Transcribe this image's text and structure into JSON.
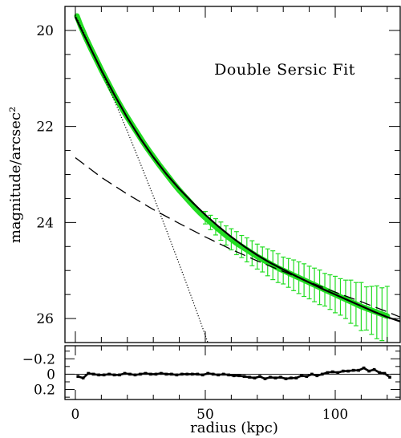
{
  "chart_data": [
    {
      "type": "line",
      "panel": "main",
      "annotation": "Double Sersic Fit",
      "xlabel": "radius (kpc)",
      "ylabel": "magnitude/arcsec²",
      "xlim": [
        -4,
        125
      ],
      "ylim": [
        26.5,
        19.5
      ],
      "y_inverted": true,
      "yticks": [
        20,
        22,
        24,
        26
      ],
      "colors": {
        "data": "#22dd22",
        "errorbar": "#22dd22",
        "model": "#000000"
      },
      "series": [
        {
          "style": "green-points",
          "x": [
            0.6,
            2,
            4,
            6,
            8,
            10,
            12,
            14,
            16,
            18,
            20,
            22,
            24,
            26,
            28,
            30,
            32,
            34,
            36,
            38,
            40,
            42,
            44,
            46,
            48,
            50,
            52,
            54,
            56,
            58,
            60,
            62,
            64,
            66,
            68,
            70,
            72,
            74,
            76,
            78,
            80,
            82,
            84,
            86,
            88,
            90,
            92,
            94,
            96,
            98,
            100,
            102,
            104,
            106,
            108,
            110,
            112,
            114,
            116,
            118,
            120
          ],
          "y": [
            19.7,
            19.9,
            20.15,
            20.38,
            20.6,
            20.82,
            21.03,
            21.24,
            21.44,
            21.63,
            21.81,
            21.98,
            22.15,
            22.32,
            22.48,
            22.63,
            22.78,
            22.92,
            23.06,
            23.2,
            23.33,
            23.45,
            23.57,
            23.69,
            23.8,
            23.9,
            24.0,
            24.09,
            24.18,
            24.27,
            24.35,
            24.43,
            24.5,
            24.57,
            24.64,
            24.71,
            24.77,
            24.83,
            24.89,
            24.95,
            25.0,
            25.05,
            25.1,
            25.15,
            25.2,
            25.25,
            25.3,
            25.35,
            25.4,
            25.45,
            25.5,
            25.55,
            25.6,
            25.65,
            25.7,
            25.75,
            25.79,
            25.83,
            25.87,
            25.91,
            25.95
          ],
          "yerr": [
            0.04,
            0.04,
            0.04,
            0.04,
            0.04,
            0.04,
            0.04,
            0.04,
            0.04,
            0.04,
            0.04,
            0.04,
            0.04,
            0.04,
            0.05,
            0.05,
            0.05,
            0.05,
            0.05,
            0.05,
            0.06,
            0.06,
            0.06,
            0.07,
            0.08,
            0.13,
            0.15,
            0.17,
            0.19,
            0.2,
            0.22,
            0.24,
            0.23,
            0.25,
            0.26,
            0.26,
            0.26,
            0.28,
            0.3,
            0.3,
            0.28,
            0.3,
            0.32,
            0.33,
            0.34,
            0.34,
            0.35,
            0.36,
            0.34,
            0.36,
            0.38,
            0.38,
            0.4,
            0.45,
            0.45,
            0.5,
            0.45,
            0.5,
            0.55,
            0.55,
            0.62
          ]
        },
        {
          "style": "solid",
          "x": [
            0,
            5,
            10,
            15,
            20,
            25,
            30,
            35,
            40,
            45,
            50,
            55,
            60,
            65,
            70,
            75,
            80,
            85,
            90,
            95,
            100,
            105,
            110,
            115,
            120,
            125
          ],
          "y": [
            19.72,
            20.28,
            20.83,
            21.34,
            21.82,
            22.25,
            22.64,
            22.99,
            23.3,
            23.58,
            23.84,
            24.08,
            24.3,
            24.5,
            24.68,
            24.84,
            24.98,
            25.12,
            25.25,
            25.38,
            25.5,
            25.62,
            25.74,
            25.86,
            25.97,
            26.06
          ]
        },
        {
          "style": "dotted",
          "x": [
            0,
            5,
            10,
            15,
            20,
            25,
            30,
            35,
            40,
            45,
            50,
            55,
            58
          ],
          "y": [
            19.68,
            20.25,
            20.85,
            21.46,
            22.1,
            22.77,
            23.45,
            24.15,
            24.87,
            25.6,
            26.35,
            27.12,
            27.6
          ]
        },
        {
          "style": "dashed",
          "x": [
            0,
            10,
            20,
            30,
            40,
            50,
            60,
            70,
            80,
            90,
            100,
            110,
            120,
            125
          ],
          "y": [
            22.65,
            23.06,
            23.41,
            23.73,
            24.02,
            24.3,
            24.56,
            24.8,
            25.02,
            25.24,
            25.45,
            25.65,
            25.86,
            25.97
          ]
        }
      ]
    },
    {
      "type": "scatter",
      "panel": "residual",
      "xlabel": "radius (kpc)",
      "xlim": [
        -4,
        125
      ],
      "ylim": [
        0.33,
        -0.37
      ],
      "y_inverted": true,
      "yticks": [
        0.2,
        0,
        -0.2
      ],
      "ytick_labels": [
        "0.2",
        "0",
        "−0.2"
      ],
      "xticks": [
        0,
        50,
        100
      ],
      "xtick_labels": [
        "0",
        "50",
        "100"
      ],
      "x": [
        1,
        3,
        5,
        7,
        9,
        11,
        13,
        15,
        17,
        19,
        21,
        23,
        25,
        27,
        29,
        31,
        33,
        35,
        37,
        39,
        41,
        43,
        45,
        47,
        49,
        51,
        53,
        55,
        57,
        59,
        61,
        63,
        65,
        67,
        69,
        71,
        73,
        75,
        77,
        79,
        81,
        83,
        85,
        87,
        89,
        91,
        93,
        95,
        97,
        99,
        101,
        103,
        105,
        107,
        109,
        111,
        113,
        115,
        117,
        119,
        121
      ],
      "y": [
        0.03,
        0.05,
        -0.01,
        0.0,
        0.01,
        0.01,
        0.0,
        0.01,
        0.01,
        -0.01,
        0.0,
        0.01,
        0.0,
        -0.01,
        0.0,
        0.0,
        -0.01,
        0.0,
        0.0,
        0.01,
        0.0,
        0.0,
        0.0,
        0.0,
        0.01,
        -0.01,
        0.0,
        0.01,
        0.0,
        0.01,
        0.02,
        0.02,
        0.03,
        0.04,
        0.05,
        0.03,
        0.06,
        0.04,
        0.05,
        0.04,
        0.06,
        0.05,
        0.05,
        0.02,
        0.03,
        0.0,
        0.02,
        0.0,
        -0.02,
        -0.03,
        -0.02,
        -0.04,
        -0.04,
        -0.05,
        -0.05,
        -0.08,
        -0.04,
        -0.06,
        -0.02,
        -0.01,
        0.04
      ]
    }
  ]
}
